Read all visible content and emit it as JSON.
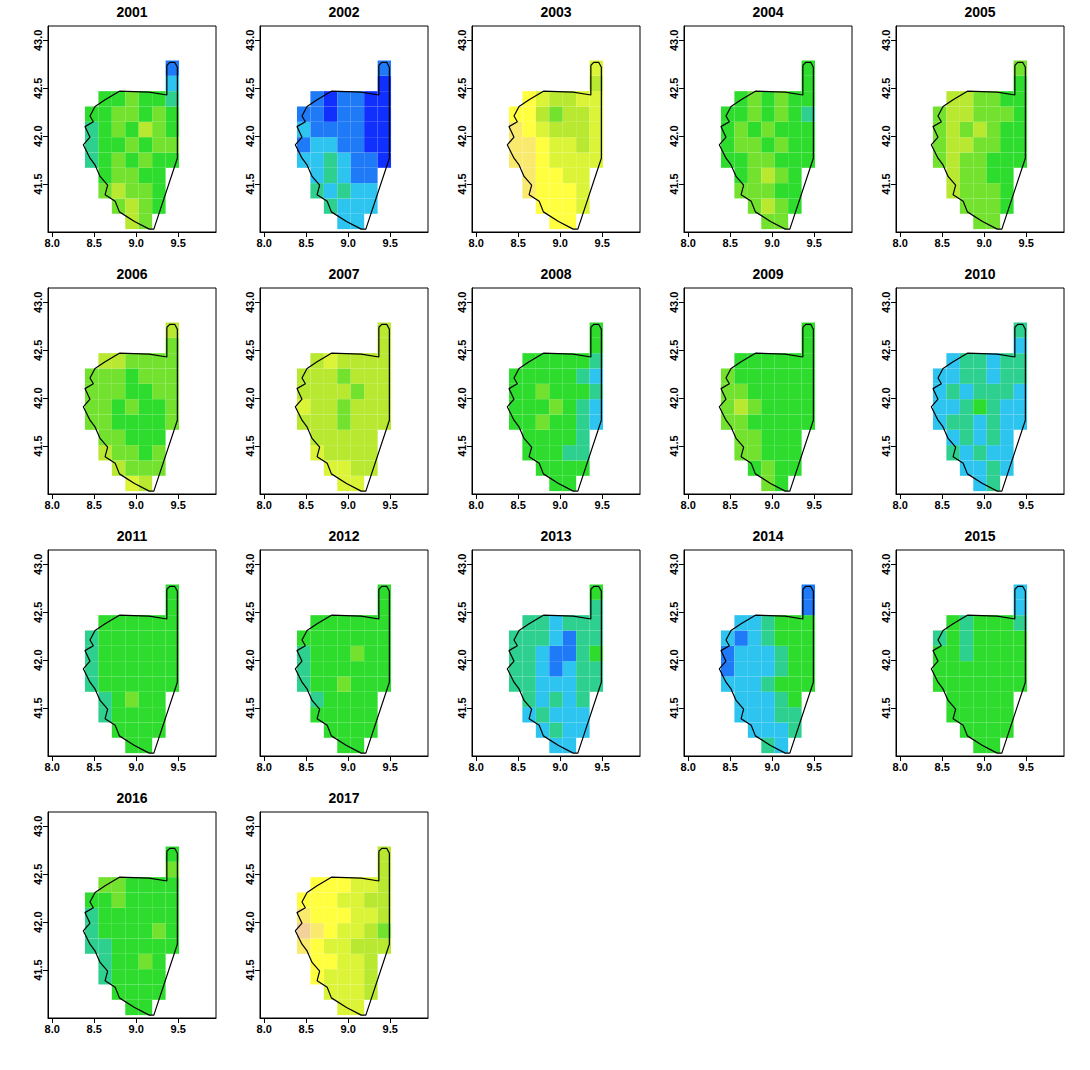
{
  "chart_data": {
    "type": "heatmap",
    "xlim": [
      7.95,
      9.95
    ],
    "ylim": [
      41.0,
      43.15
    ],
    "xticks": [
      {
        "value": 8,
        "label": "8.0"
      },
      8.5,
      {
        "value": 9,
        "label": "9.0"
      },
      9.5
    ],
    "yticks": [
      41.5,
      {
        "value": 42,
        "label": "42.0"
      },
      42.5,
      {
        "value": 43,
        "label": "43.0"
      }
    ],
    "value_range": [
      0,
      5
    ],
    "cell_size": [
      0.16,
      0.16
    ],
    "cells": [
      [
        8.95,
        41.11
      ],
      [
        9.11,
        41.11
      ],
      [
        8.79,
        41.27
      ],
      [
        8.95,
        41.27
      ],
      [
        9.11,
        41.27
      ],
      [
        9.27,
        41.27
      ],
      [
        8.63,
        41.43
      ],
      [
        8.79,
        41.43
      ],
      [
        8.95,
        41.43
      ],
      [
        9.11,
        41.43
      ],
      [
        9.27,
        41.43
      ],
      [
        8.63,
        41.59
      ],
      [
        8.79,
        41.59
      ],
      [
        8.95,
        41.59
      ],
      [
        9.11,
        41.59
      ],
      [
        9.27,
        41.59
      ],
      [
        8.47,
        41.75
      ],
      [
        8.63,
        41.75
      ],
      [
        8.79,
        41.75
      ],
      [
        8.95,
        41.75
      ],
      [
        9.11,
        41.75
      ],
      [
        9.27,
        41.75
      ],
      [
        9.43,
        41.75
      ],
      [
        8.47,
        41.91
      ],
      [
        8.63,
        41.91
      ],
      [
        8.79,
        41.91
      ],
      [
        8.95,
        41.91
      ],
      [
        9.11,
        41.91
      ],
      [
        9.27,
        41.91
      ],
      [
        9.43,
        41.91
      ],
      [
        8.47,
        42.07
      ],
      [
        8.63,
        42.07
      ],
      [
        8.79,
        42.07
      ],
      [
        8.95,
        42.07
      ],
      [
        9.11,
        42.07
      ],
      [
        9.27,
        42.07
      ],
      [
        9.43,
        42.07
      ],
      [
        8.47,
        42.23
      ],
      [
        8.63,
        42.23
      ],
      [
        8.79,
        42.23
      ],
      [
        8.95,
        42.23
      ],
      [
        9.11,
        42.23
      ],
      [
        9.27,
        42.23
      ],
      [
        9.43,
        42.23
      ],
      [
        8.63,
        42.39
      ],
      [
        8.79,
        42.39
      ],
      [
        8.95,
        42.39
      ],
      [
        9.11,
        42.39
      ],
      [
        9.27,
        42.39
      ],
      [
        9.43,
        42.39
      ],
      [
        9.43,
        42.55
      ],
      [
        9.43,
        42.71
      ]
    ],
    "outline": [
      [
        9.365,
        42.74
      ],
      [
        9.4,
        42.77
      ],
      [
        9.46,
        42.77
      ],
      [
        9.49,
        42.72
      ],
      [
        9.49,
        42.47
      ],
      [
        9.49,
        41.77
      ],
      [
        9.21,
        41.03
      ],
      [
        9.155,
        41.03
      ],
      [
        8.98,
        41.11
      ],
      [
        8.8,
        41.21
      ],
      [
        8.75,
        41.32
      ],
      [
        8.63,
        41.39
      ],
      [
        8.66,
        41.49
      ],
      [
        8.57,
        41.58
      ],
      [
        8.51,
        41.7
      ],
      [
        8.45,
        41.77
      ],
      [
        8.37,
        41.91
      ],
      [
        8.45,
        41.99
      ],
      [
        8.39,
        42.1
      ],
      [
        8.49,
        42.15
      ],
      [
        8.45,
        42.21
      ],
      [
        8.51,
        42.31
      ],
      [
        8.63,
        42.38
      ],
      [
        8.8,
        42.47
      ],
      [
        9.155,
        42.46
      ],
      [
        9.365,
        42.43
      ]
    ],
    "panels": [
      {
        "title": "2001",
        "values": [
          3,
          2.5,
          2.5,
          3,
          2.5,
          2,
          2.5,
          3,
          2.5,
          2.5,
          2,
          2,
          2.5,
          2.5,
          2,
          2,
          1.5,
          2,
          2.5,
          2,
          2.5,
          2,
          2,
          1.5,
          2,
          2,
          2.5,
          2,
          2.5,
          2.5,
          1.5,
          2,
          2.5,
          2,
          3,
          2.5,
          2,
          2,
          2,
          2.5,
          2.5,
          2,
          2.5,
          2,
          2,
          2,
          2.5,
          2,
          2,
          1.5,
          1,
          0.5
        ]
      },
      {
        "title": "2002",
        "values": [
          1,
          1,
          1.5,
          1,
          1,
          1,
          1.5,
          1,
          1.5,
          1,
          1,
          1,
          1.5,
          1,
          0.5,
          0.5,
          1,
          1,
          1.5,
          1,
          0.5,
          0.5,
          0,
          0.5,
          1,
          1,
          0.5,
          0.5,
          0,
          0,
          1,
          0.5,
          0.5,
          0.5,
          0.5,
          0,
          0,
          0.5,
          0.5,
          0,
          0.5,
          0.5,
          0,
          0,
          0.5,
          0,
          0.5,
          0.5,
          0,
          0,
          0,
          0.5
        ]
      },
      {
        "title": "2003",
        "values": [
          4,
          4,
          4,
          4,
          4,
          3.5,
          4.5,
          4,
          4,
          4,
          3.5,
          4.5,
          4,
          4,
          3.5,
          3.5,
          4.5,
          4.5,
          4,
          3.5,
          3.5,
          3.5,
          3.5,
          4.5,
          4.5,
          4,
          3.5,
          3.5,
          3,
          3.5,
          4.5,
          4,
          3.5,
          3,
          3,
          3,
          3.5,
          4,
          4,
          3,
          2.5,
          3,
          3,
          3.5,
          4,
          3.5,
          3,
          3,
          3.5,
          3.5,
          3,
          3.5
        ]
      },
      {
        "title": "2004",
        "values": [
          2.5,
          2.5,
          2.5,
          3,
          2.5,
          2,
          2.5,
          2.5,
          2.5,
          2,
          2,
          2,
          2.5,
          3,
          2.5,
          2,
          2,
          2,
          2.5,
          2.5,
          2,
          2,
          2,
          2,
          2.5,
          2.5,
          2,
          2.5,
          2,
          2,
          2,
          2.5,
          2,
          2.5,
          2,
          2,
          2,
          2,
          2,
          2.5,
          2,
          2.5,
          2,
          1.5,
          2,
          2.5,
          2,
          2.5,
          2,
          2,
          2,
          2
        ]
      },
      {
        "title": "2005",
        "values": [
          2.5,
          2.5,
          2.5,
          2.5,
          2.5,
          2,
          3,
          2.5,
          2.5,
          2.5,
          2,
          3,
          2.5,
          2.5,
          2,
          2,
          2.5,
          3,
          2.5,
          2.5,
          2,
          2,
          2,
          2.5,
          3,
          3,
          2.5,
          2.5,
          2,
          2,
          2.5,
          3,
          2.5,
          3,
          2.5,
          2,
          2,
          2.5,
          3,
          3,
          2.5,
          2.5,
          2.5,
          2,
          3,
          3,
          2.5,
          2.5,
          2,
          2,
          2,
          2.5
        ]
      },
      {
        "title": "2006",
        "values": [
          3.5,
          3,
          3,
          2.5,
          2.5,
          2.5,
          3,
          2.5,
          2.5,
          2,
          2.5,
          2.5,
          2.5,
          2,
          2,
          2,
          2.5,
          2.5,
          2,
          2,
          2,
          2,
          2.5,
          2.5,
          2.5,
          2,
          2.5,
          2,
          2,
          2.5,
          2.5,
          2.5,
          2.5,
          2,
          2,
          2.5,
          2.5,
          2.5,
          2.5,
          2.5,
          2,
          2.5,
          2.5,
          2.5,
          3,
          3,
          2.5,
          2.5,
          2.5,
          2.5,
          2.5,
          3
        ]
      },
      {
        "title": "2007",
        "values": [
          3.5,
          3.5,
          3.5,
          3.5,
          3,
          3,
          3.5,
          3,
          3,
          3,
          3,
          3,
          3,
          3,
          3,
          3,
          3,
          3,
          3,
          2.5,
          3,
          3,
          3,
          3.5,
          3,
          3,
          2.5,
          3,
          3,
          3,
          3,
          3,
          3,
          3,
          2.5,
          3,
          3,
          3,
          3,
          3,
          2.5,
          3,
          3,
          3,
          3,
          3.5,
          3,
          3,
          3,
          3,
          3,
          3
        ]
      },
      {
        "title": "2008",
        "values": [
          2,
          2,
          2,
          2,
          2,
          2,
          2,
          2,
          2,
          1.5,
          1.5,
          2,
          2,
          2,
          2,
          1.5,
          2,
          2,
          2.5,
          2,
          2,
          1.5,
          1,
          2,
          2,
          2,
          2.5,
          2,
          1.5,
          1,
          2,
          2,
          2.5,
          2,
          2,
          2,
          1.5,
          2,
          2,
          2,
          2,
          2,
          1.5,
          1,
          2,
          2,
          2,
          2,
          2,
          1.5,
          2,
          2
        ]
      },
      {
        "title": "2009",
        "values": [
          2.5,
          2,
          2,
          2.5,
          2,
          2,
          2.5,
          2.5,
          2,
          2,
          2,
          2.5,
          2.5,
          2,
          2,
          2,
          2.5,
          2.5,
          2,
          2,
          2,
          2,
          2,
          2.5,
          3,
          2.5,
          2,
          2,
          2,
          2,
          2.5,
          2.5,
          2,
          2,
          2,
          2,
          2,
          2.5,
          2,
          2,
          2,
          2,
          2,
          2,
          2,
          2,
          2,
          2,
          2,
          2,
          2,
          2
        ]
      },
      {
        "title": "2010",
        "values": [
          1,
          1.5,
          1,
          1,
          1.5,
          1,
          1.5,
          1,
          1.5,
          1,
          1,
          1,
          1.5,
          1,
          1.5,
          1,
          1,
          1.5,
          1.5,
          1,
          1.5,
          1,
          1,
          1,
          1,
          1.5,
          2,
          1.5,
          1,
          1,
          1,
          1.5,
          1,
          1.5,
          1.5,
          1.5,
          1,
          1,
          1,
          1.5,
          1.5,
          1,
          1.5,
          1.5,
          1,
          1.5,
          1.5,
          1,
          1.5,
          1.5,
          1,
          1.5
        ]
      },
      {
        "title": "2011",
        "values": [
          2,
          2,
          2,
          2,
          2,
          2,
          1.5,
          2,
          2,
          2,
          2,
          1.5,
          2,
          2.5,
          2,
          2,
          1.5,
          2,
          2,
          2,
          2,
          2,
          2,
          1.5,
          2,
          2,
          2,
          2,
          2,
          2,
          1.5,
          2,
          2,
          2,
          2,
          2,
          2,
          1.5,
          2,
          2,
          2,
          2,
          2,
          2,
          2,
          2,
          2,
          2,
          2,
          2,
          2,
          2
        ]
      },
      {
        "title": "2012",
        "values": [
          2,
          2,
          2,
          2,
          2,
          2,
          2,
          2,
          2,
          2,
          2,
          1.5,
          2,
          2,
          2,
          2,
          1.5,
          2,
          2,
          2.5,
          2,
          2,
          2,
          1.5,
          2,
          2,
          2,
          2,
          2,
          2,
          1.5,
          2,
          2,
          2,
          2.5,
          2,
          2,
          2,
          2,
          2,
          2,
          2,
          2,
          2,
          2,
          2,
          2,
          2,
          2,
          2,
          2,
          2
        ]
      },
      {
        "title": "2013",
        "values": [
          1,
          1,
          1,
          1.5,
          1,
          1,
          1,
          1.5,
          1,
          1,
          1,
          1.5,
          1,
          1.5,
          1,
          1.5,
          1.5,
          1.5,
          1,
          1,
          1,
          1.5,
          1.5,
          1.5,
          1.5,
          1,
          0.5,
          1,
          1.5,
          1.5,
          1.5,
          1.5,
          1,
          0.5,
          0.5,
          1.5,
          2,
          1.5,
          1.5,
          1.5,
          1,
          0.5,
          1.5,
          1.5,
          1.5,
          1.5,
          1,
          1.5,
          1.5,
          1.5,
          1.5,
          2
        ]
      },
      {
        "title": "2014",
        "values": [
          1.5,
          1,
          1,
          1,
          1,
          1.5,
          1,
          1,
          1,
          1.5,
          1.5,
          1,
          1,
          1,
          1.5,
          2,
          1,
          1,
          1,
          1.5,
          2,
          2,
          2,
          0.5,
          1,
          1,
          1,
          1.5,
          2,
          2,
          0.5,
          1,
          1,
          1,
          1.5,
          2,
          2,
          1,
          0.5,
          1,
          1.5,
          2,
          2,
          2,
          1,
          1,
          1.5,
          2,
          2,
          2,
          0.5,
          0.5
        ]
      },
      {
        "title": "2015",
        "values": [
          2,
          2,
          2,
          2,
          2,
          2,
          2,
          2,
          2,
          2,
          2,
          2,
          2,
          2,
          2,
          2,
          2,
          2,
          2,
          2,
          2,
          2,
          2,
          2,
          2,
          2,
          2,
          2,
          2,
          2,
          2,
          2,
          1.5,
          2,
          2,
          2,
          2,
          1.5,
          2,
          1.5,
          2,
          2,
          2,
          2,
          2,
          1.5,
          2,
          2,
          2,
          1.5,
          1,
          1
        ]
      },
      {
        "title": "2016",
        "values": [
          2,
          2,
          2,
          2,
          2,
          2,
          1.5,
          2,
          2,
          2,
          2,
          1.5,
          2,
          2,
          2.5,
          2,
          1.5,
          1.5,
          2,
          2,
          2,
          2,
          2,
          1.5,
          2,
          2,
          2,
          2,
          2.5,
          2,
          1.5,
          2,
          2,
          2,
          2,
          2,
          2,
          2,
          2,
          2.5,
          2,
          2,
          2,
          2,
          2.5,
          2.5,
          2,
          2,
          2,
          2,
          2.5,
          2
        ]
      },
      {
        "title": "2017",
        "values": [
          3.5,
          3.5,
          3.5,
          3.5,
          3.5,
          3,
          4,
          3.5,
          3.5,
          3.5,
          3,
          4,
          4,
          3.5,
          3.5,
          3,
          4.5,
          4,
          3.5,
          3.5,
          3,
          3,
          3,
          5,
          4.5,
          4,
          3.5,
          3.5,
          3,
          2.5,
          4.5,
          4,
          4,
          4,
          3.5,
          3.5,
          3,
          4,
          4,
          4,
          3.5,
          3.5,
          3,
          3,
          4,
          4,
          4,
          3.5,
          3.5,
          3,
          3,
          3
        ]
      }
    ]
  }
}
